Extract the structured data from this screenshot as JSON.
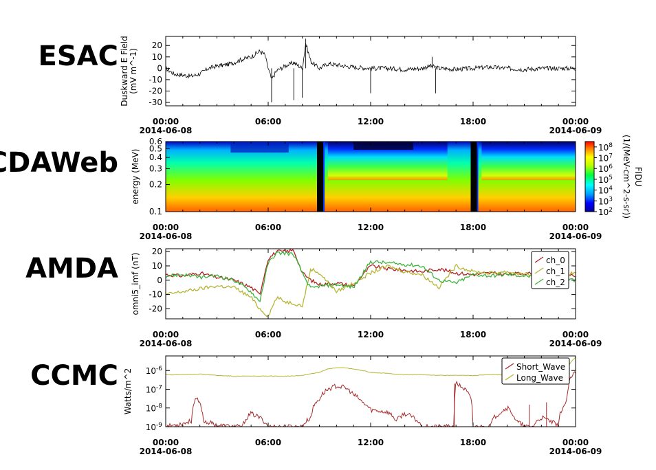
{
  "panel_labels": [
    "ESAC",
    "CDAWeb",
    "AMDA",
    "CCMC"
  ],
  "chart_data": [
    {
      "type": "line",
      "source": "ESAC",
      "ylabel": "Duskward E Field",
      "yunit": "(mV m^-1)",
      "yticks": [
        20,
        10,
        0,
        -10,
        -20,
        -30
      ],
      "ylim": [
        -33,
        28
      ],
      "xlim": [
        "2014-06-08T00:00",
        "2014-06-09T00:00"
      ],
      "xticks": [
        "00:00",
        "06:00",
        "12:00",
        "18:00",
        "00:00"
      ],
      "xdates": [
        "2014-06-08",
        "2014-06-09"
      ],
      "series": [
        {
          "color": "#000000",
          "x_hours": [
            0,
            0.5,
            1,
            1.5,
            2,
            2.5,
            3,
            3.5,
            4,
            4.5,
            5,
            5.5,
            5.8,
            6,
            6.2,
            6.5,
            7,
            7.5,
            8,
            8.2,
            8.5,
            9,
            9.5,
            10,
            11,
            12,
            13,
            14,
            15,
            15.5,
            16,
            17,
            18,
            19,
            20,
            21,
            22,
            23,
            24
          ],
          "values": [
            0,
            -5,
            -6,
            -7,
            -5,
            0,
            2,
            3,
            5,
            8,
            10,
            15,
            12,
            0,
            -10,
            -2,
            2,
            5,
            0,
            22,
            6,
            0,
            4,
            3,
            1,
            0,
            0,
            -1,
            0,
            2,
            0,
            -1,
            0,
            1,
            0,
            -1,
            0,
            0,
            0
          ]
        }
      ]
    },
    {
      "type": "heatmap",
      "source": "CDAWeb",
      "ylabel": "energy (MeV)",
      "yscale": "log",
      "ylim": [
        0.1,
        0.6
      ],
      "yticks": [
        0.6,
        0.5,
        0.4,
        0.3,
        0.2,
        0.1
      ],
      "colorbar_label": "FIDU",
      "colorbar_unit": "(1/(MeV-cm^2-s-sr))",
      "colorbar_ticks": [
        "10^8",
        "10^7",
        "10^6",
        "10^5",
        "10^4",
        "10^3",
        "10^2"
      ],
      "colorbar_range": [
        2,
        8.5
      ],
      "xlim": [
        "2014-06-08T00:00",
        "2014-06-09T00:00"
      ],
      "xticks": [
        "00:00",
        "06:00",
        "12:00",
        "18:00",
        "00:00"
      ],
      "xdates": [
        "2014-06-08",
        "2014-06-09"
      ]
    },
    {
      "type": "line",
      "source": "AMDA",
      "ylabel": "omni5_imf (nT)",
      "yticks": [
        20,
        10,
        0,
        -10,
        -20
      ],
      "ylim": [
        -27,
        22
      ],
      "xlim": [
        "2014-06-08T00:00",
        "2014-06-09T00:00"
      ],
      "xticks": [
        "00:00",
        "06:00",
        "12:00",
        "18:00",
        "00:00"
      ],
      "xdates": [
        "2014-06-08",
        "2014-06-09"
      ],
      "legend_position": "top-right",
      "series": [
        {
          "name": "ch_0",
          "color": "#b22222",
          "x_hours": [
            0,
            1,
            2,
            3,
            4,
            5,
            5.5,
            6,
            6.5,
            7,
            7.5,
            8,
            8.5,
            9,
            10,
            11,
            12,
            13,
            14,
            15,
            16,
            17,
            18,
            19,
            20,
            21,
            22,
            23,
            24
          ],
          "values": [
            4,
            3,
            5,
            2,
            0,
            -5,
            -10,
            15,
            20,
            20,
            21,
            5,
            0,
            -3,
            -2,
            -4,
            10,
            8,
            7,
            6,
            8,
            5,
            4,
            5,
            4,
            5,
            4,
            3,
            3
          ]
        },
        {
          "name": "ch_1",
          "color": "#b5b535",
          "x_hours": [
            0,
            1,
            2,
            3,
            4,
            5,
            5.5,
            6,
            6.5,
            7,
            7.5,
            8,
            8.5,
            9,
            10,
            11,
            12,
            13,
            14,
            15,
            16,
            17,
            18,
            19,
            20,
            21,
            22,
            23,
            24
          ],
          "values": [
            -10,
            -8,
            -6,
            -4,
            -5,
            -12,
            -20,
            -25,
            -12,
            -15,
            -16,
            -18,
            8,
            5,
            -8,
            -2,
            5,
            10,
            6,
            4,
            -5,
            10,
            6,
            5,
            6,
            4,
            5,
            4,
            5
          ]
        },
        {
          "name": "ch_2",
          "color": "#3cb43c",
          "x_hours": [
            0,
            1,
            2,
            3,
            4,
            5,
            5.5,
            6,
            6.5,
            7,
            7.5,
            8,
            8.5,
            9,
            10,
            11,
            12,
            13,
            14,
            15,
            16,
            17,
            18,
            19,
            20,
            21,
            22,
            23,
            24
          ],
          "values": [
            3,
            4,
            2,
            3,
            0,
            -8,
            -15,
            12,
            19,
            19,
            18,
            5,
            -6,
            -4,
            -3,
            -5,
            13,
            12,
            11,
            10,
            0,
            -2,
            4,
            3,
            4,
            3,
            2,
            1,
            0
          ]
        }
      ]
    },
    {
      "type": "line",
      "source": "CCMC",
      "ylabel": "Watts/m^2",
      "yscale": "log",
      "ylim": [
        1e-09,
        6e-06
      ],
      "yticks": [
        "10^-6",
        "10^-7",
        "10^-8",
        "10^-9"
      ],
      "xlim": [
        "2014-06-08T00:00",
        "2014-06-09T00:00"
      ],
      "xticks": [
        "00:00",
        "06:00",
        "12:00",
        "18:00",
        "00:00"
      ],
      "xdates": [
        "2014-06-08",
        "2014-06-09"
      ],
      "legend_position": "top-right",
      "series": [
        {
          "name": "Short_Wave",
          "color": "#a52a2a",
          "x_hours": [
            0,
            1,
            1.5,
            1.8,
            2.2,
            3,
            4,
            4.5,
            5,
            6,
            7,
            8,
            8.5,
            9,
            9.5,
            10,
            10.5,
            11,
            11.5,
            12,
            13,
            13.5,
            14,
            15,
            16,
            16.9,
            17,
            18,
            19,
            19.5,
            20,
            20.5,
            21,
            21.5,
            22,
            23,
            23.5,
            24
          ],
          "values": [
            1e-09,
            1.5e-09,
            2e-09,
            3e-08,
            2e-09,
            1.2e-09,
            1e-09,
            1e-09,
            5e-09,
            1e-09,
            1e-09,
            1e-09,
            3e-09,
            3e-08,
            1e-07,
            1.5e-07,
            1.2e-07,
            5e-08,
            2e-08,
            8e-09,
            6e-09,
            2e-09,
            5e-09,
            1e-09,
            1e-09,
            1e-09,
            2e-07,
            1e-09,
            1e-09,
            5e-09,
            1e-08,
            2e-09,
            1e-09,
            1e-09,
            3e-09,
            1e-09,
            2e-08,
            8e-07
          ]
        },
        {
          "name": "Long_Wave",
          "color": "#b5b535",
          "x_hours": [
            0,
            1,
            2,
            3,
            4,
            5,
            6,
            7,
            8,
            9,
            9.5,
            10,
            10.5,
            11,
            11.5,
            12,
            13,
            14,
            15,
            16,
            17,
            18,
            19,
            20,
            21,
            22,
            23,
            23.5,
            24
          ],
          "values": [
            6e-07,
            6e-07,
            6.5e-07,
            5.5e-07,
            5e-07,
            5e-07,
            5e-07,
            5e-07,
            5.5e-07,
            8e-07,
            1.2e-06,
            1.4e-06,
            1.4e-06,
            1.2e-06,
            1e-06,
            8e-07,
            7e-07,
            6e-07,
            6e-07,
            5.5e-07,
            5.5e-07,
            5.5e-07,
            6e-07,
            6e-07,
            6e-07,
            6.5e-07,
            7e-07,
            1e-06,
            5e-06
          ]
        }
      ]
    }
  ]
}
